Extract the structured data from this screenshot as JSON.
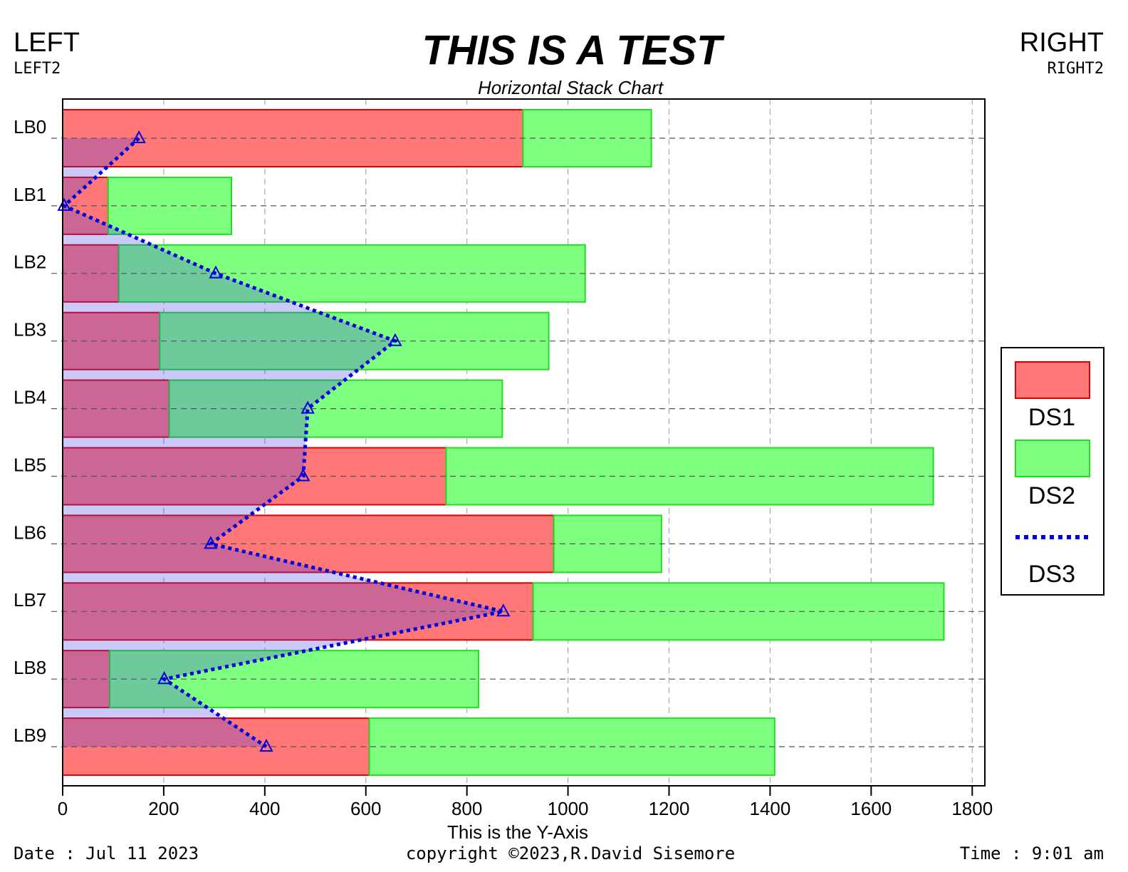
{
  "header": {
    "left": "LEFT",
    "left2": "LEFT2",
    "right": "RIGHT",
    "right2": "RIGHT2"
  },
  "footer": {
    "date": "Date : Jul 11 2023",
    "copyright": "copyright ©2023,R.David Sisemore",
    "time": "Time : 9:01 am"
  },
  "chart_data": {
    "type": "bar",
    "orientation": "horizontal",
    "stacked": true,
    "title": "THIS IS A TEST",
    "subtitle": "Horizontal Stack Chart",
    "x_label": "This is the Y-Axis",
    "categories": [
      "LB0",
      "LB1",
      "LB2",
      "LB3",
      "LB4",
      "LB5",
      "LB6",
      "LB7",
      "LB8",
      "LB9"
    ],
    "series": [
      {
        "name": "DS1",
        "color": "#ff7777",
        "edge_color": "#dd0000",
        "values": [
          911,
          90,
          111,
          192,
          211,
          759,
          972,
          931,
          93,
          607
        ]
      },
      {
        "name": "DS2",
        "color": "#7fff7f",
        "edge_color": "#22dd22",
        "values": [
          254,
          244,
          923,
          770,
          659,
          964,
          213,
          813,
          730,
          802
        ]
      },
      {
        "name": "DS3",
        "type": "line",
        "color": "#0000dd",
        "line_style": "dotted",
        "marker": "triangle",
        "fill_area": true,
        "values": [
          151,
          3,
          303,
          658,
          485,
          476,
          293,
          872,
          201,
          403
        ]
      }
    ],
    "xlim": [
      0,
      1825
    ],
    "xticks": [
      0,
      200,
      400,
      600,
      800,
      1000,
      1200,
      1400,
      1600,
      1800
    ],
    "grid": true,
    "legend": "right"
  }
}
